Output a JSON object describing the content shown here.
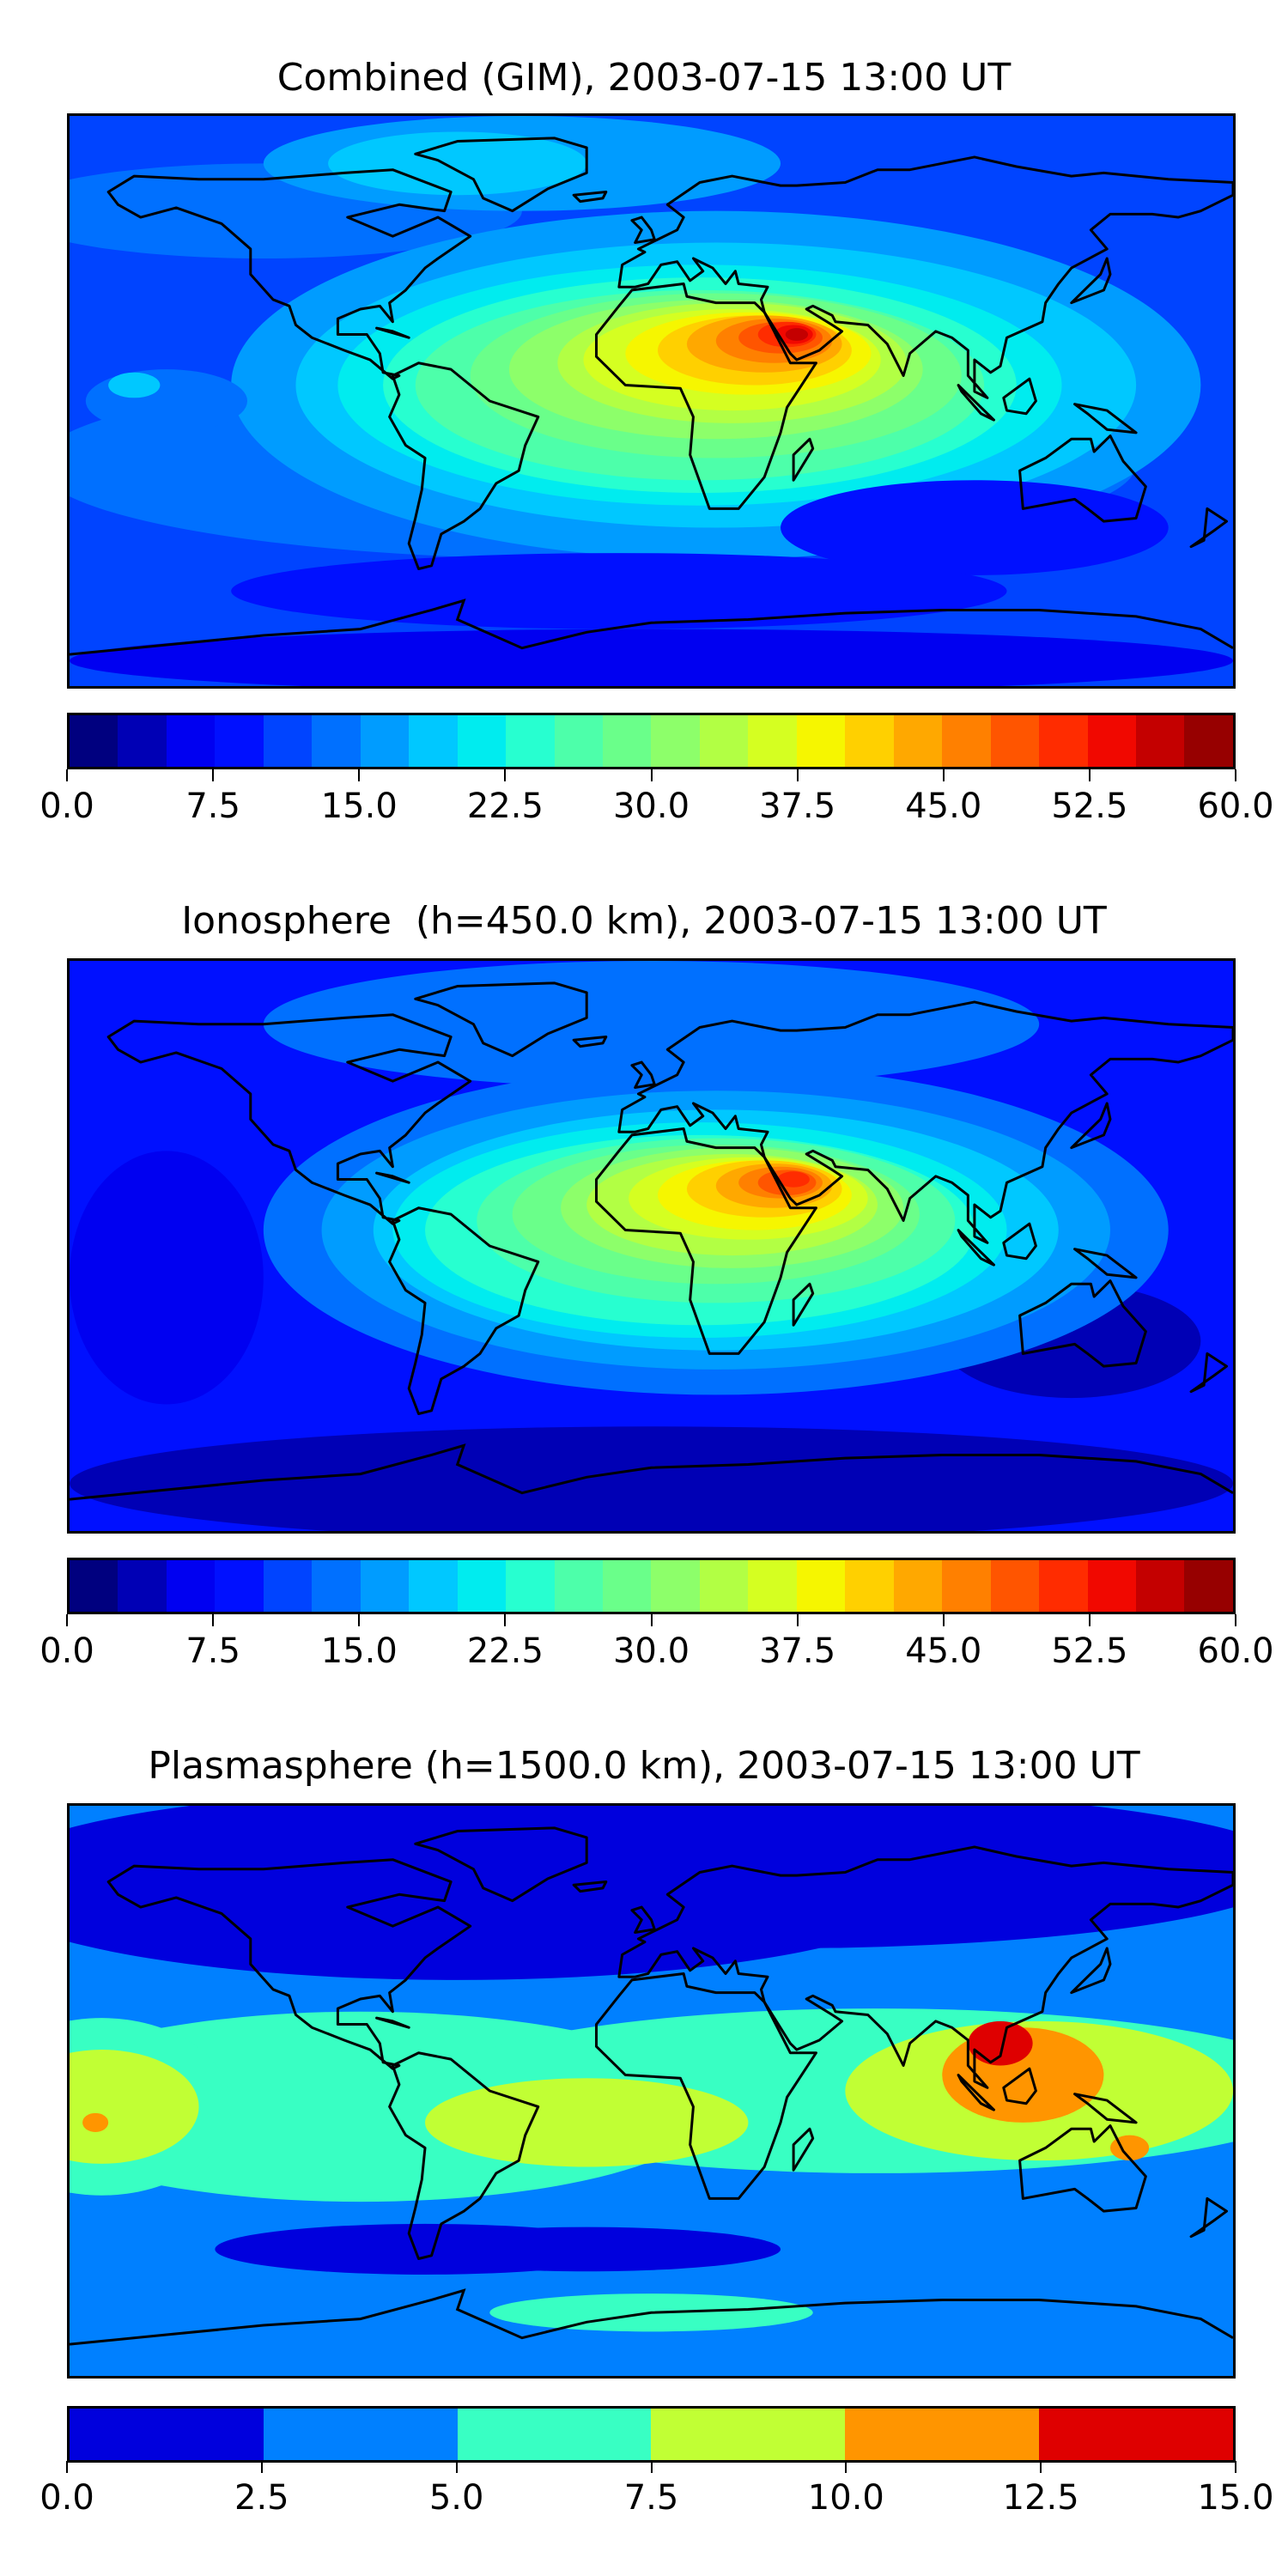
{
  "chart_data": [
    {
      "type": "heatmap",
      "subtype": "filled-contour-map",
      "title": "Combined (GIM), 2003-07-15 13:00 UT",
      "projection": "PlateCarree",
      "colormap": "jet",
      "range": [
        0,
        60
      ],
      "level_step": 2.5,
      "colorbar_ticks": [
        "0.0",
        "7.5",
        "15.0",
        "22.5",
        "30.0",
        "37.5",
        "45.0",
        "52.5",
        "60.0"
      ],
      "tick_values": [
        0,
        7.5,
        15,
        22.5,
        30,
        37.5,
        45,
        52.5,
        60
      ],
      "peak": {
        "value_approx": 55,
        "region": "Northeast Africa / Arabia"
      },
      "level_colors": [
        "#00007f",
        "#0000b5",
        "#0000f1",
        "#0010ff",
        "#0044ff",
        "#0070ff",
        "#009cff",
        "#00c8ff",
        "#00ecef",
        "#27ffd0",
        "#4dffaa",
        "#6aff8a",
        "#8dff6a",
        "#b2ff44",
        "#d5ff21",
        "#f6f600",
        "#ffd000",
        "#ffa800",
        "#ff8000",
        "#ff5500",
        "#ff2c00",
        "#f10800",
        "#c40000",
        "#970000"
      ]
    },
    {
      "type": "heatmap",
      "subtype": "filled-contour-map",
      "title": "Ionosphere  (h=450.0 km), 2003-07-15 13:00 UT",
      "projection": "PlateCarree",
      "colormap": "jet",
      "range": [
        0,
        60
      ],
      "level_step": 2.5,
      "colorbar_ticks": [
        "0.0",
        "7.5",
        "15.0",
        "22.5",
        "30.0",
        "37.5",
        "45.0",
        "52.5",
        "60.0"
      ],
      "tick_values": [
        0,
        7.5,
        15,
        22.5,
        30,
        37.5,
        45,
        52.5,
        60
      ],
      "peak": {
        "value_approx": 50,
        "region": "Arabian Peninsula / Red Sea"
      },
      "level_colors": [
        "#00007f",
        "#0000b5",
        "#0000f1",
        "#0010ff",
        "#0044ff",
        "#0070ff",
        "#009cff",
        "#00c8ff",
        "#00ecef",
        "#27ffd0",
        "#4dffaa",
        "#6aff8a",
        "#8dff6a",
        "#b2ff44",
        "#d5ff21",
        "#f6f600",
        "#ffd000",
        "#ffa800",
        "#ff8000",
        "#ff5500",
        "#ff2c00",
        "#f10800",
        "#c40000",
        "#970000"
      ]
    },
    {
      "type": "heatmap",
      "subtype": "filled-contour-map",
      "title": "Plasmasphere (h=1500.0 km), 2003-07-15 13:00 UT",
      "projection": "PlateCarree",
      "colormap": "jet",
      "range": [
        0,
        15
      ],
      "level_step": 2.5,
      "colorbar_ticks": [
        "0.0",
        "2.5",
        "5.0",
        "7.5",
        "10.0",
        "12.5",
        "15.0"
      ],
      "tick_values": [
        0,
        2.5,
        5,
        7.5,
        10,
        12.5,
        15
      ],
      "peak": {
        "value_approx": 13,
        "region": "Southeast Asia"
      },
      "level_colors": [
        "#0000dd",
        "#0080ff",
        "#38ffc3",
        "#c1ff34",
        "#ff9500",
        "#df0000"
      ]
    }
  ]
}
